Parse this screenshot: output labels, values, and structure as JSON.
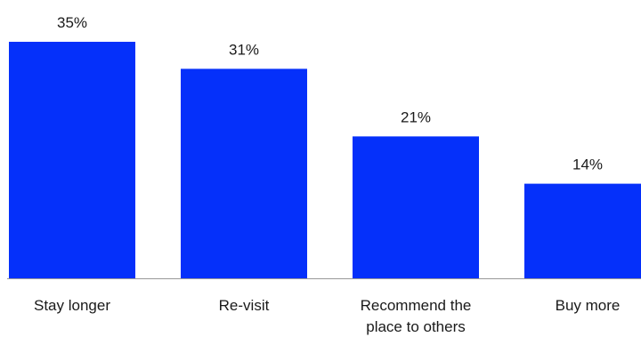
{
  "chart_data": {
    "type": "bar",
    "categories": [
      [
        "Stay longer"
      ],
      [
        "Re-visit"
      ],
      [
        "Recommend the",
        "place to others"
      ],
      [
        "Buy more"
      ]
    ],
    "values": [
      35,
      31,
      21,
      14
    ],
    "value_labels": [
      "35%",
      "31%",
      "21%",
      "14%"
    ],
    "ylim": [
      0,
      40
    ],
    "grid": false,
    "bar_color": "#0530fa",
    "axis_color": "#999999"
  }
}
